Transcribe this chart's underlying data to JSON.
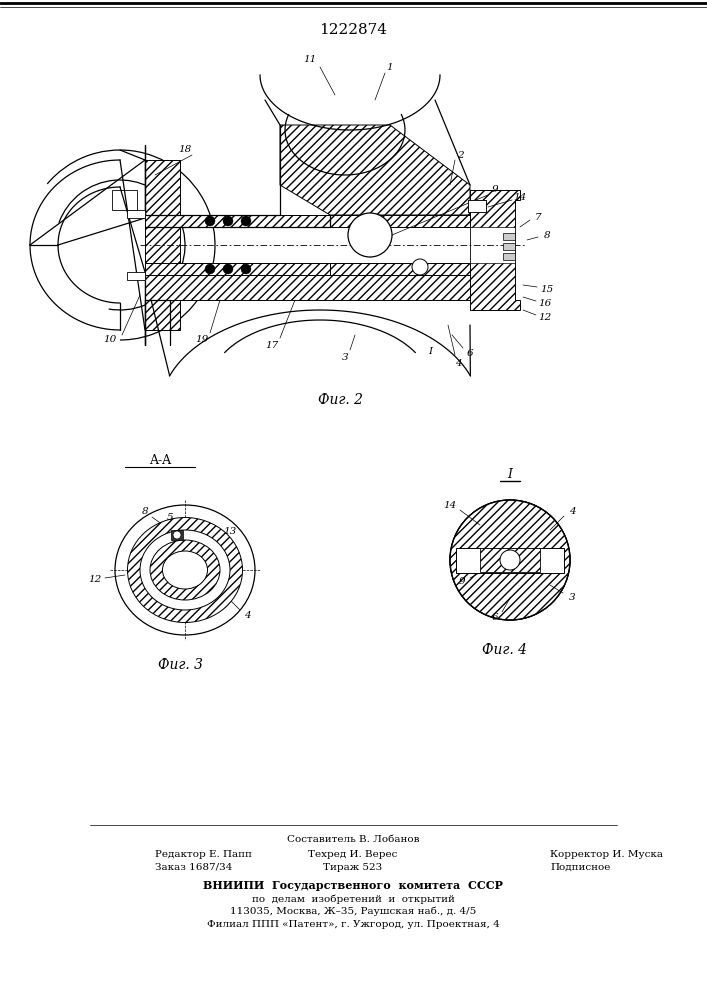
{
  "title": "1222874",
  "bg_color": "#ffffff",
  "line_color": "#000000",
  "fig2_caption": "Фиг. 2",
  "fig3_caption": "Фиг. 3",
  "fig4_caption": "Фиг. 4",
  "section_label": "A-A",
  "detail_label": "I",
  "footer_col1_line1": "Редактор Е. Папп",
  "footer_col1_line2": "Заказ 1687/34",
  "footer_col2_line0": "Составитель В. Лобанов",
  "footer_col2_line1": "Техред И. Верес",
  "footer_col2_line2": "Тираж 523",
  "footer_col3_line1": "Корректор И. Муска",
  "footer_col3_line2": "Подписное",
  "footer_vnipi1": "ВНИИПИ  Государственного  комитета  СССР",
  "footer_vnipi2": "по  делам  изобретений  и  открытий",
  "footer_vnipi3": "113035, Москва, Ж–35, Раушская наб., д. 4/5",
  "footer_vnipi4": "Филиал ППП «Патент», г. Ужгород, ул. Проектная, 4"
}
